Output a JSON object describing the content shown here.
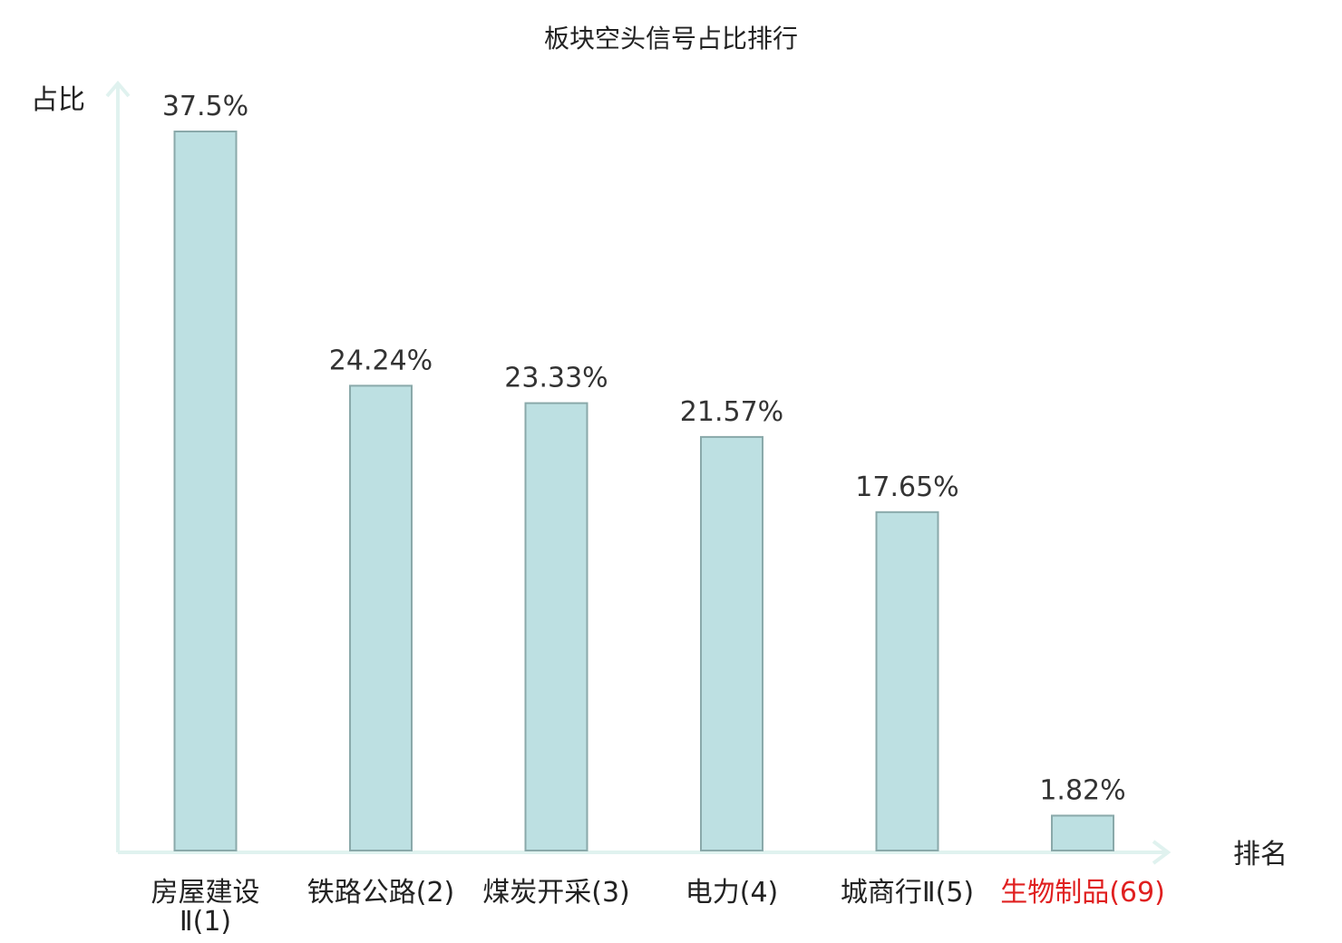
{
  "chart_data": {
    "type": "bar",
    "title": "板块空头信号占比排行",
    "ylabel": "占比",
    "xlabel": "排名",
    "ylim": [
      0,
      37.5
    ],
    "grid": false,
    "colors": {
      "bar_fill": "#bde0e2",
      "bar_stroke": "#8aa9aa",
      "axis": "#e0f2ef",
      "highlight_label": "#e02020"
    },
    "categories": [
      {
        "name": "房屋建设Ⅱ",
        "rank": "(1)",
        "lines": [
          "房屋建设",
          "Ⅱ(1)"
        ],
        "highlight": false
      },
      {
        "name": "铁路公路",
        "rank": "(2)",
        "lines": [
          "铁路公路(2)"
        ],
        "highlight": false
      },
      {
        "name": "煤炭开采",
        "rank": "(3)",
        "lines": [
          "煤炭开采(3)"
        ],
        "highlight": false
      },
      {
        "name": "电力",
        "rank": "(4)",
        "lines": [
          "电力(4)"
        ],
        "highlight": false
      },
      {
        "name": "城商行Ⅱ",
        "rank": "(5)",
        "lines": [
          "城商行Ⅱ(5)"
        ],
        "highlight": false
      },
      {
        "name": "生物制品",
        "rank": "(69)",
        "lines": [
          "生物制品(69)"
        ],
        "highlight": true
      }
    ],
    "values": [
      37.5,
      24.24,
      23.33,
      21.57,
      17.65,
      1.82
    ],
    "value_labels": [
      "37.5%",
      "24.24%",
      "23.33%",
      "21.57%",
      "17.65%",
      "1.82%"
    ]
  }
}
